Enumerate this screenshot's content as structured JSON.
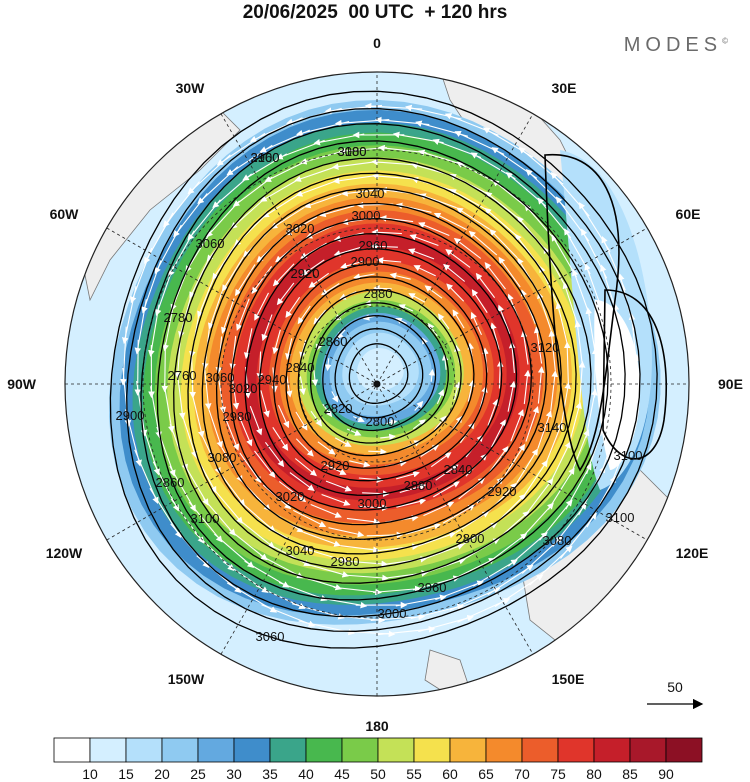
{
  "title": "20/06/2025  00 UTC  + 120 hrs",
  "brand": "MODES",
  "brand_mark": "©",
  "longitude_labels": {
    "north": "0",
    "south": "180",
    "east": "90E",
    "west": "90W",
    "ne1": "30E",
    "ne2": "60E",
    "se1": "120E",
    "se2": "150E",
    "nw1": "30W",
    "nw2": "60W",
    "sw1": "120W",
    "sw2": "150W"
  },
  "contour_labels": [
    "3100",
    "3080",
    "3060",
    "3040",
    "3020",
    "3000",
    "2960",
    "2920",
    "2900",
    "2880",
    "2860",
    "2840",
    "2820",
    "2800",
    "2780",
    "2760",
    "3060",
    "3020",
    "2980",
    "2940",
    "2900",
    "2860",
    "3100",
    "3080",
    "3040",
    "2980",
    "3020",
    "3000",
    "2920",
    "2880",
    "2800",
    "2840",
    "2920",
    "2960",
    "3000",
    "3060",
    "3080",
    "3100",
    "3100",
    "3120",
    "3140",
    "2960",
    "3100"
  ],
  "wind_reference": {
    "label": "50"
  },
  "colorbar": {
    "levels": [
      "10",
      "15",
      "20",
      "25",
      "30",
      "35",
      "40",
      "45",
      "50",
      "55",
      "60",
      "65",
      "70",
      "75",
      "80",
      "85",
      "90"
    ],
    "colors": [
      "#ffffff",
      "#d4efff",
      "#b4e0fb",
      "#8fcaf1",
      "#63a9e0",
      "#3f8dcb",
      "#3aa58a",
      "#48b84e",
      "#7acb49",
      "#c4e157",
      "#f5e14d",
      "#f7b43b",
      "#f48a2c",
      "#ec5d2b",
      "#e0352b",
      "#c51f2a",
      "#a8182a",
      "#8c1024"
    ]
  },
  "colors": {
    "land": "#eeeeee",
    "coast": "#777777",
    "contour": "#000000",
    "streamline": "#ffffff"
  }
}
